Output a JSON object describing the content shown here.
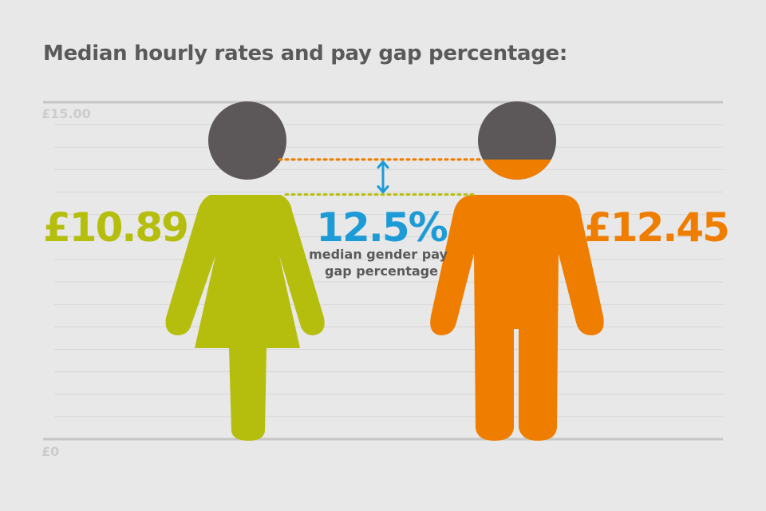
{
  "title": "Median hourly rates and pay gap percentage:",
  "chart_data": {
    "type": "bar",
    "title": "Median hourly rates and pay gap percentage:",
    "ylim": [
      0,
      15
    ],
    "tick_labels": [
      "£15.00",
      "£0"
    ],
    "grid": true,
    "categories": [
      "female",
      "male"
    ],
    "values": [
      10.89,
      12.45
    ],
    "value_labels": [
      "£10.89",
      "£12.45"
    ],
    "gap_percent": 12.5,
    "gap_label": "12.5%",
    "gap_caption": [
      "median gender pay",
      "gap percentage"
    ]
  },
  "colors": {
    "female": "#b5be0d",
    "male": "#ee7d00",
    "head": "#5c5759",
    "gap": "#1d9bd7",
    "grid": "#d6d6d6",
    "axis": "#c6c6c6"
  }
}
